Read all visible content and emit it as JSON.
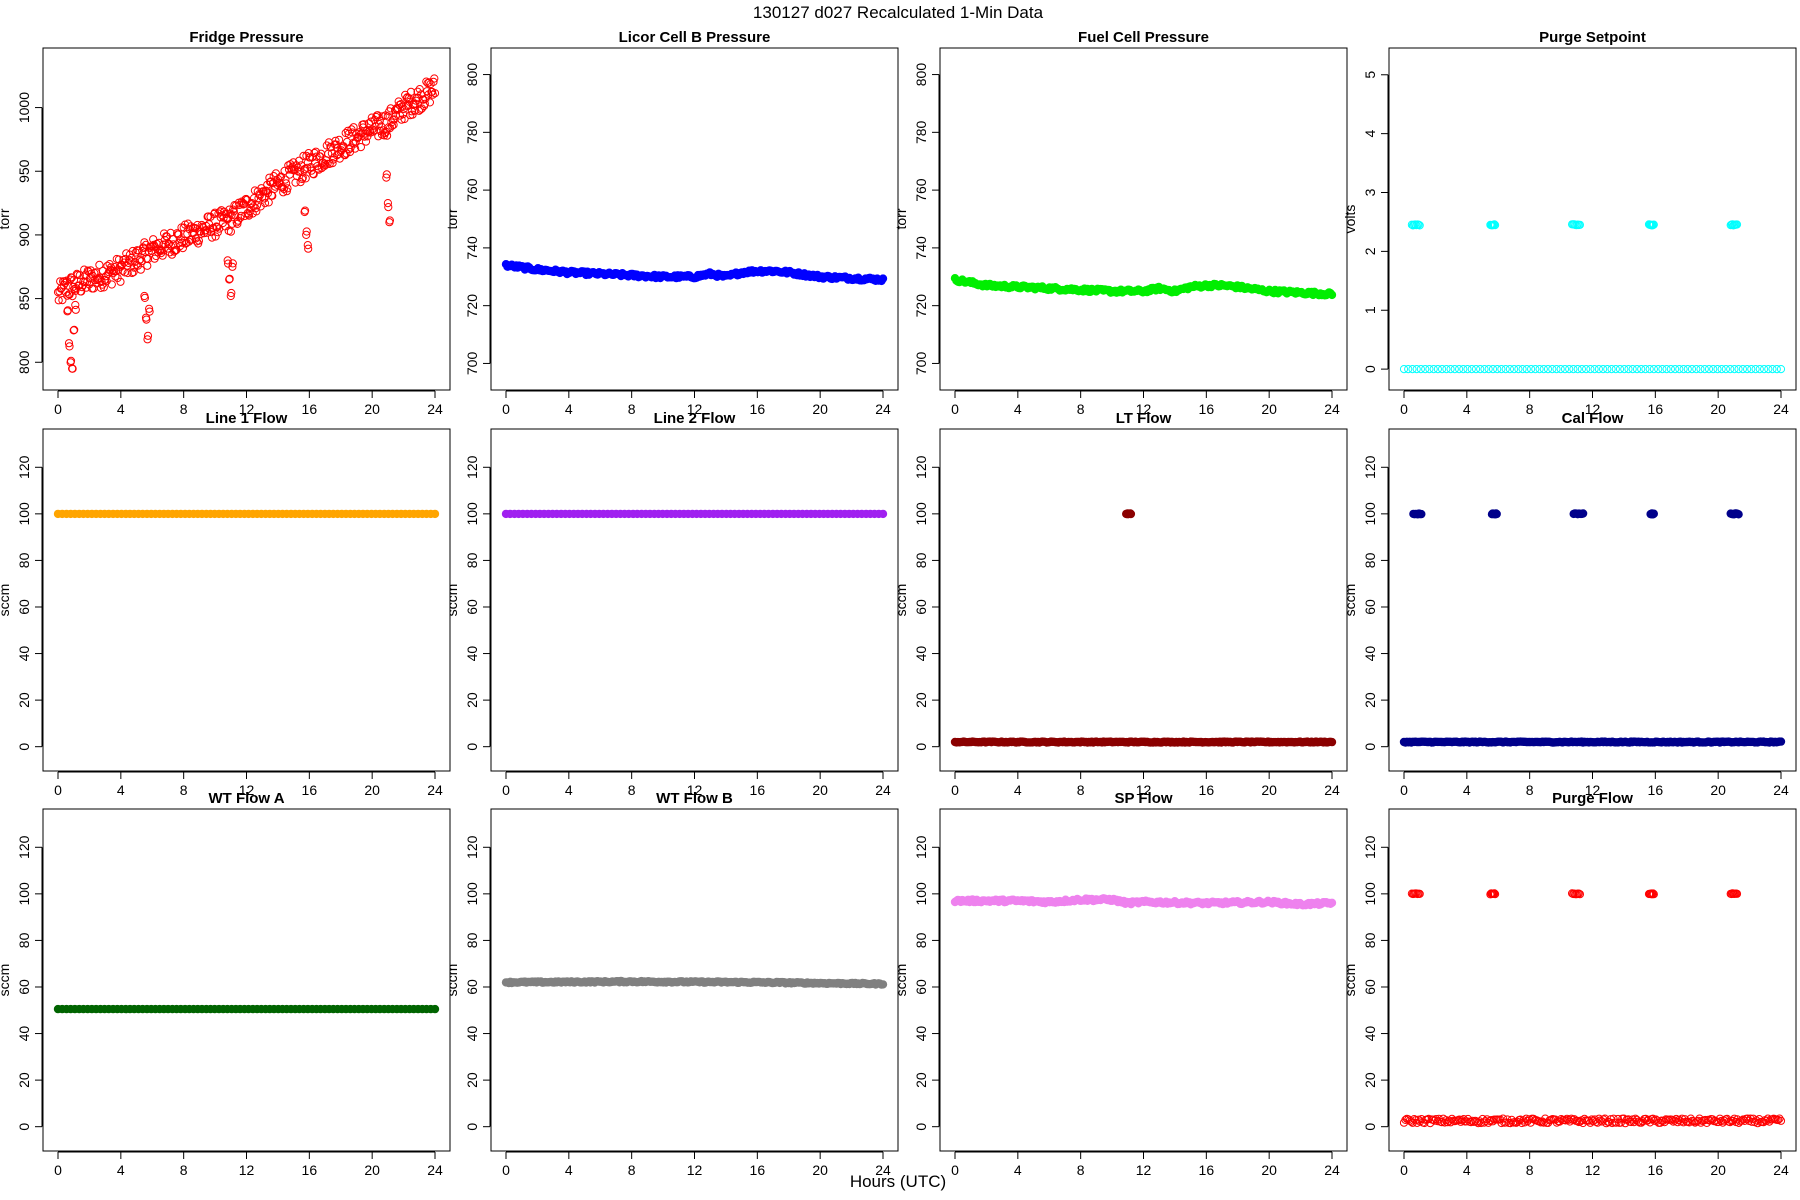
{
  "figure": {
    "title": "130127   d027   Recalculated 1-Min Data",
    "xlabel": "Hours (UTC)"
  },
  "chart_data": [
    {
      "type": "scatter",
      "title": "Fridge Pressure",
      "ylabel": "torr",
      "xlim": [
        0,
        24
      ],
      "ylim": [
        790,
        1035
      ],
      "xticks": [
        0,
        4,
        8,
        12,
        16,
        20,
        24
      ],
      "yticks": [
        800,
        850,
        900,
        950,
        1000
      ],
      "color": "#ff0000",
      "marker": "open-circle",
      "series": [
        {
          "kind": "trend",
          "x": [
            0,
            0.5,
            1,
            2,
            4,
            6,
            8,
            10,
            11,
            12,
            14,
            16,
            18,
            20,
            21,
            22,
            24
          ],
          "y": [
            852,
            858,
            860,
            865,
            873,
            888,
            898,
            908,
            912,
            922,
            940,
            955,
            970,
            983,
            988,
            1000,
            1015
          ],
          "noise": 10
        },
        {
          "kind": "dip",
          "x": [
            0.6,
            0.7,
            0.8,
            0.9,
            1.0,
            1.1
          ],
          "y": [
            840,
            815,
            800,
            795,
            825,
            845
          ]
        },
        {
          "kind": "dip",
          "x": [
            5.5,
            5.6,
            5.7,
            5.8
          ],
          "y": [
            852,
            835,
            818,
            842
          ]
        },
        {
          "kind": "dip",
          "x": [
            10.8,
            10.9,
            11.0,
            11.1
          ],
          "y": [
            880,
            865,
            852,
            875
          ]
        },
        {
          "kind": "dip",
          "x": [
            15.7,
            15.8,
            15.9
          ],
          "y": [
            918,
            900,
            892
          ]
        },
        {
          "kind": "dip",
          "x": [
            20.9,
            21.0,
            21.1
          ],
          "y": [
            945,
            925,
            910
          ]
        }
      ]
    },
    {
      "type": "scatter",
      "title": "Licor Cell B Pressure",
      "ylabel": "torr",
      "xlim": [
        0,
        24
      ],
      "ylim": [
        696,
        804
      ],
      "xticks": [
        0,
        4,
        8,
        12,
        16,
        20,
        24
      ],
      "yticks": [
        700,
        720,
        740,
        760,
        780,
        800
      ],
      "color": "#0000ff",
      "marker": "filled",
      "series": [
        {
          "kind": "trend",
          "x": [
            0,
            2,
            4,
            6,
            8,
            10,
            12,
            13,
            14,
            15,
            16,
            17,
            18,
            20,
            22,
            24
          ],
          "y": [
            734,
            732.5,
            731.5,
            731,
            730.5,
            730,
            730,
            731,
            730,
            731.5,
            732,
            732,
            731.5,
            730,
            729.5,
            729
          ],
          "noise": 0.6
        }
      ]
    },
    {
      "type": "scatter",
      "title": "Fuel Cell Pressure",
      "ylabel": "torr",
      "xlim": [
        0,
        24
      ],
      "ylim": [
        696,
        804
      ],
      "xticks": [
        0,
        4,
        8,
        12,
        16,
        20,
        24
      ],
      "yticks": [
        700,
        720,
        740,
        760,
        780,
        800
      ],
      "color": "#00ee00",
      "marker": "filled",
      "series": [
        {
          "kind": "trend",
          "x": [
            0,
            2,
            4,
            6,
            8,
            10,
            12,
            13,
            14,
            15,
            16,
            17,
            18,
            20,
            22,
            24
          ],
          "y": [
            729,
            727,
            726.5,
            726,
            725.5,
            725,
            725,
            726,
            725,
            726.5,
            727,
            727,
            726.5,
            725,
            724.5,
            724
          ],
          "noise": 0.6
        }
      ]
    },
    {
      "type": "scatter",
      "title": "Purge Setpoint",
      "ylabel": "volts",
      "xlim": [
        0,
        24
      ],
      "ylim": [
        -0.1,
        5.2
      ],
      "xticks": [
        0,
        4,
        8,
        12,
        16,
        20,
        24
      ],
      "yticks": [
        0,
        1,
        2,
        3,
        4,
        5
      ],
      "color": "#00ffff",
      "marker": "open-circle",
      "series": [
        {
          "kind": "trend",
          "x": [
            0,
            24
          ],
          "y": [
            0,
            0
          ],
          "noise": 0
        },
        {
          "kind": "segment",
          "x": [
            0.5,
            1.0
          ],
          "y": [
            2.45,
            2.45
          ]
        },
        {
          "kind": "segment",
          "x": [
            5.5,
            5.8
          ],
          "y": [
            2.45,
            2.45
          ]
        },
        {
          "kind": "segment",
          "x": [
            10.7,
            11.2
          ],
          "y": [
            2.45,
            2.45
          ]
        },
        {
          "kind": "segment",
          "x": [
            15.6,
            15.9
          ],
          "y": [
            2.45,
            2.45
          ]
        },
        {
          "kind": "segment",
          "x": [
            20.8,
            21.2
          ],
          "y": [
            2.45,
            2.45
          ]
        }
      ]
    },
    {
      "type": "scatter",
      "title": "Line 1 Flow",
      "ylabel": "sccm",
      "xlim": [
        0,
        24
      ],
      "ylim": [
        -4,
        130
      ],
      "xticks": [
        0,
        4,
        8,
        12,
        16,
        20,
        24
      ],
      "yticks": [
        0,
        20,
        40,
        60,
        80,
        100,
        120
      ],
      "color": "#ffa500",
      "marker": "filled",
      "series": [
        {
          "kind": "trend",
          "x": [
            0,
            24
          ],
          "y": [
            100,
            100
          ],
          "noise": 0
        }
      ]
    },
    {
      "type": "scatter",
      "title": "Line 2 Flow",
      "ylabel": "sccm",
      "xlim": [
        0,
        24
      ],
      "ylim": [
        -4,
        130
      ],
      "xticks": [
        0,
        4,
        8,
        12,
        16,
        20,
        24
      ],
      "yticks": [
        0,
        20,
        40,
        60,
        80,
        100,
        120
      ],
      "color": "#a020f0",
      "marker": "filled",
      "series": [
        {
          "kind": "trend",
          "x": [
            0,
            24
          ],
          "y": [
            100,
            100
          ],
          "noise": 0
        }
      ]
    },
    {
      "type": "scatter",
      "title": "LT Flow",
      "ylabel": "sccm",
      "xlim": [
        0,
        24
      ],
      "ylim": [
        -4,
        130
      ],
      "xticks": [
        0,
        4,
        8,
        12,
        16,
        20,
        24
      ],
      "yticks": [
        0,
        20,
        40,
        60,
        80,
        100,
        120
      ],
      "color": "#8b0000",
      "marker": "filled",
      "series": [
        {
          "kind": "trend",
          "x": [
            0,
            24
          ],
          "y": [
            2,
            2
          ],
          "noise": 0.2
        },
        {
          "kind": "segment",
          "x": [
            10.9,
            11.2
          ],
          "y": [
            100,
            100
          ]
        }
      ]
    },
    {
      "type": "scatter",
      "title": "Cal Flow",
      "ylabel": "sccm",
      "xlim": [
        0,
        24
      ],
      "ylim": [
        -4,
        130
      ],
      "xticks": [
        0,
        4,
        8,
        12,
        16,
        20,
        24
      ],
      "yticks": [
        0,
        20,
        40,
        60,
        80,
        100,
        120
      ],
      "color": "#00008b",
      "marker": "filled",
      "series": [
        {
          "kind": "trend",
          "x": [
            0,
            24
          ],
          "y": [
            2,
            2
          ],
          "noise": 0.2
        },
        {
          "kind": "segment",
          "x": [
            0.6,
            1.1
          ],
          "y": [
            100,
            100
          ]
        },
        {
          "kind": "segment",
          "x": [
            5.6,
            5.9
          ],
          "y": [
            100,
            100
          ]
        },
        {
          "kind": "segment",
          "x": [
            10.8,
            11.4
          ],
          "y": [
            100,
            100
          ]
        },
        {
          "kind": "segment",
          "x": [
            15.7,
            15.9
          ],
          "y": [
            100,
            100
          ]
        },
        {
          "kind": "segment",
          "x": [
            20.8,
            21.3
          ],
          "y": [
            100,
            100
          ]
        }
      ]
    },
    {
      "type": "scatter",
      "title": "WT Flow A",
      "ylabel": "sccm",
      "xlim": [
        0,
        24
      ],
      "ylim": [
        -4,
        130
      ],
      "xticks": [
        0,
        4,
        8,
        12,
        16,
        20,
        24
      ],
      "yticks": [
        0,
        20,
        40,
        60,
        80,
        100,
        120
      ],
      "color": "#006400",
      "marker": "filled",
      "series": [
        {
          "kind": "trend",
          "x": [
            0,
            24
          ],
          "y": [
            50.5,
            50.5
          ],
          "noise": 0
        }
      ]
    },
    {
      "type": "scatter",
      "title": "WT Flow B",
      "ylabel": "sccm",
      "xlim": [
        0,
        24
      ],
      "ylim": [
        -4,
        130
      ],
      "xticks": [
        0,
        4,
        8,
        12,
        16,
        20,
        24
      ],
      "yticks": [
        0,
        20,
        40,
        60,
        80,
        100,
        120
      ],
      "color": "#808080",
      "marker": "filled",
      "series": [
        {
          "kind": "trend",
          "x": [
            0,
            8,
            16,
            24
          ],
          "y": [
            62,
            62.3,
            62,
            61.3
          ],
          "noise": 0.3
        }
      ]
    },
    {
      "type": "scatter",
      "title": "SP Flow",
      "ylabel": "sccm",
      "xlim": [
        0,
        24
      ],
      "ylim": [
        -4,
        130
      ],
      "xticks": [
        0,
        4,
        8,
        12,
        16,
        20,
        24
      ],
      "yticks": [
        0,
        20,
        40,
        60,
        80,
        100,
        120
      ],
      "color": "#ee82ee",
      "marker": "filled",
      "series": [
        {
          "kind": "trend",
          "x": [
            0,
            4,
            6,
            8,
            10,
            11,
            12,
            16,
            20,
            22,
            24
          ],
          "y": [
            97,
            97,
            96.5,
            97.5,
            97.5,
            96,
            96.5,
            96,
            96.5,
            95.5,
            96
          ],
          "noise": 0.6
        }
      ]
    },
    {
      "type": "scatter",
      "title": "Purge Flow",
      "ylabel": "sccm",
      "xlim": [
        0,
        24
      ],
      "ylim": [
        -4,
        130
      ],
      "xticks": [
        0,
        4,
        8,
        12,
        16,
        20,
        24
      ],
      "yticks": [
        0,
        20,
        40,
        60,
        80,
        100,
        120
      ],
      "color": "#ff0000",
      "marker": "open-circle",
      "series": [
        {
          "kind": "trend",
          "x": [
            0,
            24
          ],
          "y": [
            2.5,
            2.5
          ],
          "noise": 1.0
        },
        {
          "kind": "segment",
          "x": [
            0.5,
            1.0
          ],
          "y": [
            100,
            100
          ]
        },
        {
          "kind": "segment",
          "x": [
            5.5,
            5.8
          ],
          "y": [
            100,
            100
          ]
        },
        {
          "kind": "segment",
          "x": [
            10.7,
            11.2
          ],
          "y": [
            100,
            100
          ]
        },
        {
          "kind": "segment",
          "x": [
            15.6,
            15.9
          ],
          "y": [
            100,
            100
          ]
        },
        {
          "kind": "segment",
          "x": [
            20.8,
            21.2
          ],
          "y": [
            100,
            100
          ]
        }
      ]
    }
  ]
}
